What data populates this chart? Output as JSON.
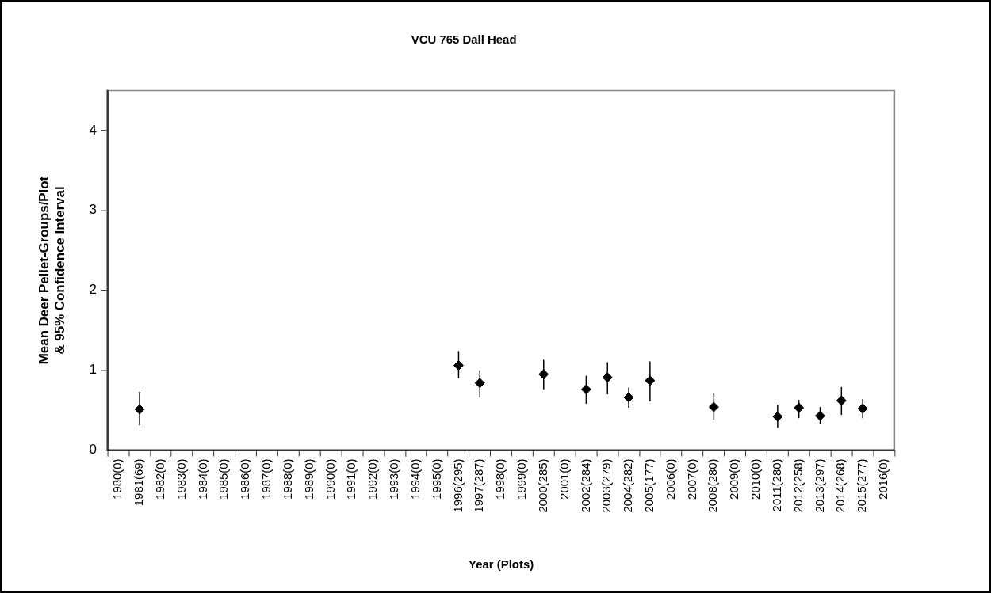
{
  "chart_data": {
    "type": "scatter",
    "title": "VCU 765 Dall Head",
    "xlabel": "Year (Plots)",
    "ylabel": "Mean Deer Pellet-Groups/Plot\n& 95% Confidence Interval",
    "categories": [
      "1980(0)",
      "1981(69)",
      "1982(0)",
      "1983(0)",
      "1984(0)",
      "1985(0)",
      "1986(0)",
      "1987(0)",
      "1988(0)",
      "1989(0)",
      "1990(0)",
      "1991(0)",
      "1992(0)",
      "1993(0)",
      "1994(0)",
      "1995(0)",
      "1996(295)",
      "1997(287)",
      "1998(0)",
      "1999(0)",
      "2000(285)",
      "2001(0)",
      "2002(284)",
      "2003(279)",
      "2004(282)",
      "2005(177)",
      "2006(0)",
      "2007(0)",
      "2008(280)",
      "2009(0)",
      "2010(0)",
      "2011(280)",
      "2012(258)",
      "2013(297)",
      "2014(268)",
      "2015(277)",
      "2016(0)"
    ],
    "series": [
      {
        "color": "#000000",
        "values": [
          null,
          0.51,
          null,
          null,
          null,
          null,
          null,
          null,
          null,
          null,
          null,
          null,
          null,
          null,
          null,
          null,
          1.06,
          0.84,
          null,
          null,
          0.95,
          null,
          0.76,
          0.91,
          0.66,
          0.87,
          null,
          null,
          0.54,
          null,
          null,
          0.42,
          0.53,
          0.43,
          0.62,
          0.52,
          null
        ],
        "errors": [
          null,
          [
            0.31,
            0.73
          ],
          null,
          null,
          null,
          null,
          null,
          null,
          null,
          null,
          null,
          null,
          null,
          null,
          null,
          null,
          [
            0.9,
            1.24
          ],
          [
            0.66,
            1.0
          ],
          null,
          null,
          [
            0.76,
            1.13
          ],
          null,
          [
            0.58,
            0.93
          ],
          [
            0.7,
            1.1
          ],
          [
            0.53,
            0.78
          ],
          [
            0.61,
            1.11
          ],
          null,
          null,
          [
            0.38,
            0.71
          ],
          null,
          null,
          [
            0.28,
            0.57
          ],
          [
            0.4,
            0.63
          ],
          [
            0.33,
            0.54
          ],
          [
            0.44,
            0.79
          ],
          [
            0.4,
            0.64
          ],
          null
        ]
      }
    ],
    "ylim": [
      0,
      4.5
    ],
    "yticks": [
      0,
      1,
      2,
      3,
      4
    ],
    "grid": false,
    "legend": false,
    "marker": "diamond"
  }
}
